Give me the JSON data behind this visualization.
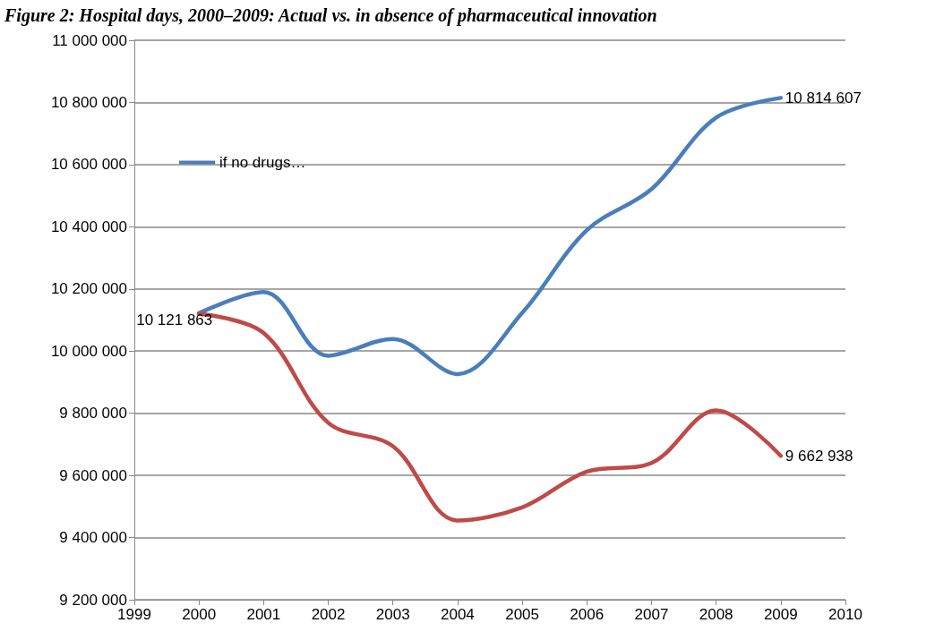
{
  "chart_data": {
    "type": "line",
    "title": "Figure 2: Hospital days, 2000–2009: Actual vs. in absence of pharmaceutical innovation",
    "x": [
      2000,
      2001,
      2002,
      2003,
      2004,
      2005,
      2006,
      2007,
      2008,
      2009
    ],
    "series": [
      {
        "name": "if no drugs…",
        "color": "#4a7ebb",
        "values": [
          10121863,
          10190000,
          9985000,
          10039000,
          9926000,
          10123000,
          10389000,
          10521000,
          10751000,
          10814607
        ],
        "value_labels": [
          "10 121 863",
          null,
          null,
          null,
          null,
          null,
          null,
          null,
          null,
          "10 814 607"
        ]
      },
      {
        "color": "#be4b48",
        "values": [
          10120000,
          10058000,
          9769000,
          9694000,
          9455000,
          9497000,
          9612000,
          9640000,
          9809000,
          9662938
        ],
        "value_labels": [
          null,
          null,
          null,
          null,
          null,
          null,
          null,
          null,
          null,
          "9 662 938"
        ]
      }
    ],
    "xlim": [
      1999,
      2010
    ],
    "xticks": [
      1999,
      2000,
      2001,
      2002,
      2003,
      2004,
      2005,
      2006,
      2007,
      2008,
      2009,
      2010
    ],
    "ylim": [
      9200000,
      11000000
    ],
    "yticks": [
      {
        "value": 9200000,
        "label": "9 200 000"
      },
      {
        "value": 9400000,
        "label": "9 400 000"
      },
      {
        "value": 9600000,
        "label": "9 600 000"
      },
      {
        "value": 9800000,
        "label": "9 800 000"
      },
      {
        "value": 10000000,
        "label": "10 000 000"
      },
      {
        "value": 10200000,
        "label": "10 200 000"
      },
      {
        "value": 10400000,
        "label": "10 400 000"
      },
      {
        "value": 10600000,
        "label": "10 600 000"
      },
      {
        "value": 10800000,
        "label": "10 800 000"
      },
      {
        "value": 11000000,
        "label": "11 000 000"
      }
    ],
    "grid": "y",
    "legend": "top left",
    "marker": "none",
    "line_style": "solid"
  }
}
